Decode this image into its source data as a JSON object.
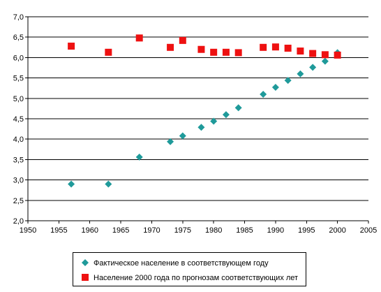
{
  "chart_data": {
    "type": "scatter",
    "title": "",
    "xlabel": "",
    "ylabel": "",
    "xlim": [
      1950,
      2005
    ],
    "ylim": [
      2.0,
      7.0
    ],
    "x_ticks": [
      "1950",
      "1955",
      "1960",
      "1965",
      "1970",
      "1975",
      "1980",
      "1985",
      "1990",
      "1995",
      "2000",
      "2005"
    ],
    "y_ticks": [
      "2,0",
      "2,5",
      "3,0",
      "3,5",
      "4,0",
      "4,5",
      "5,0",
      "5,5",
      "6,0",
      "6,5",
      "7,0"
    ],
    "grid": "horizontal",
    "legend_position": "bottom",
    "series": [
      {
        "name": "Фактическое население в соответствующем году",
        "marker": "diamond",
        "color": "#1f9a9a",
        "points": [
          [
            1957,
            2.9
          ],
          [
            1963,
            2.9
          ],
          [
            1968,
            3.56
          ],
          [
            1973,
            3.94
          ],
          [
            1975,
            4.08
          ],
          [
            1978,
            4.29
          ],
          [
            1980,
            4.44
          ],
          [
            1982,
            4.6
          ],
          [
            1984,
            4.77
          ],
          [
            1988,
            5.1
          ],
          [
            1990,
            5.27
          ],
          [
            1992,
            5.44
          ],
          [
            1994,
            5.6
          ],
          [
            1996,
            5.76
          ],
          [
            1998,
            5.91
          ],
          [
            2000,
            6.12
          ]
        ]
      },
      {
        "name": "Население 2000 года по прогнозам соответствующих лет",
        "marker": "square",
        "color": "#ee1111",
        "points": [
          [
            1957,
            6.28
          ],
          [
            1963,
            6.13
          ],
          [
            1968,
            6.48
          ],
          [
            1973,
            6.25
          ],
          [
            1975,
            6.42
          ],
          [
            1978,
            6.2
          ],
          [
            1980,
            6.13
          ],
          [
            1982,
            6.13
          ],
          [
            1984,
            6.12
          ],
          [
            1988,
            6.25
          ],
          [
            1990,
            6.26
          ],
          [
            1992,
            6.23
          ],
          [
            1994,
            6.16
          ],
          [
            1996,
            6.1
          ],
          [
            1998,
            6.07
          ],
          [
            2000,
            6.06
          ]
        ]
      }
    ]
  }
}
